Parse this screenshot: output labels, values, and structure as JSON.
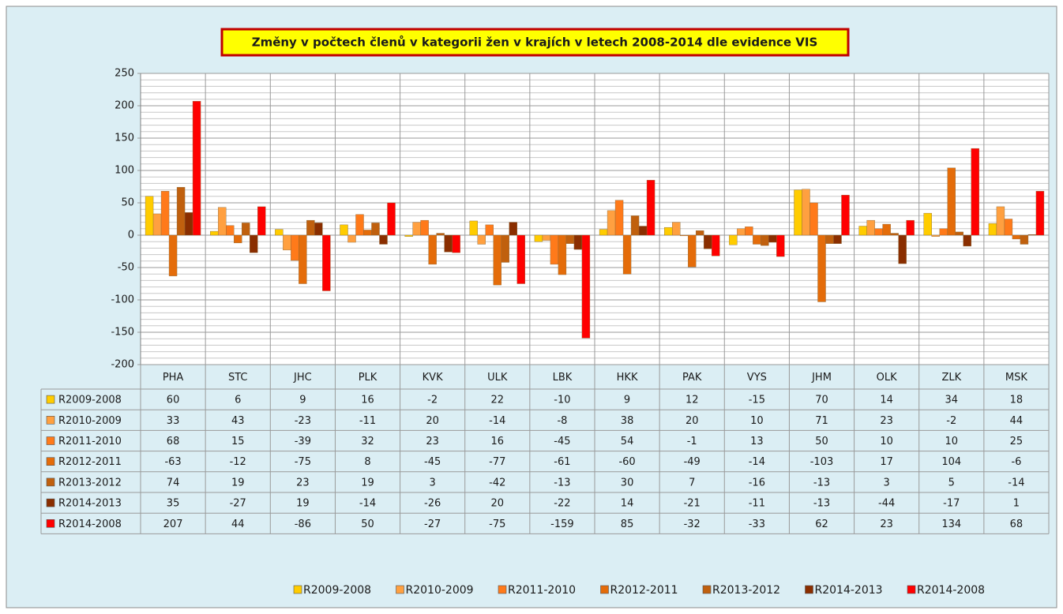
{
  "chart_data": {
    "type": "bar",
    "title": "Změny v počtech členů v kategorii žen v krajích v letech 2008-2014 dle evidence VIS",
    "categories": [
      "PHA",
      "STC",
      "JHC",
      "PLK",
      "KVK",
      "ULK",
      "LBK",
      "HKK",
      "PAK",
      "VYS",
      "JHM",
      "OLK",
      "ZLK",
      "MSK"
    ],
    "series": [
      {
        "name": "R2009-2008",
        "color": "#ffcc00",
        "values": [
          60,
          6,
          9,
          16,
          -2,
          22,
          -10,
          9,
          12,
          -15,
          70,
          14,
          34,
          18
        ]
      },
      {
        "name": "R2010-2009",
        "color": "#ffa040",
        "values": [
          33,
          43,
          -23,
          -11,
          20,
          -14,
          -8,
          38,
          20,
          10,
          71,
          23,
          -2,
          44
        ]
      },
      {
        "name": "R2011-2010",
        "color": "#ff7a1a",
        "values": [
          68,
          15,
          -39,
          32,
          23,
          16,
          -45,
          54,
          -1,
          13,
          50,
          10,
          10,
          25
        ]
      },
      {
        "name": "R2012-2011",
        "color": "#e46c0a",
        "values": [
          -63,
          -12,
          -75,
          8,
          -45,
          -77,
          -61,
          -60,
          -49,
          -14,
          -103,
          17,
          104,
          -6
        ]
      },
      {
        "name": "R2013-2012",
        "color": "#c0600e",
        "values": [
          74,
          19,
          23,
          19,
          3,
          -42,
          -13,
          30,
          7,
          -16,
          -13,
          3,
          5,
          -14
        ]
      },
      {
        "name": "R2014-2013",
        "color": "#8a2e00",
        "values": [
          35,
          -27,
          19,
          -14,
          -26,
          20,
          -22,
          14,
          -21,
          -11,
          -13,
          -44,
          -17,
          1
        ]
      },
      {
        "name": "R2014-2008",
        "color": "#ff0000",
        "values": [
          207,
          44,
          -86,
          50,
          -27,
          -75,
          -159,
          85,
          -32,
          -33,
          62,
          23,
          134,
          68
        ]
      }
    ],
    "ylim": [
      -200,
      250
    ],
    "yticks": [
      -200,
      -150,
      -100,
      -50,
      0,
      50,
      100,
      150,
      200,
      250
    ],
    "grid": true,
    "legend": "bottom"
  }
}
